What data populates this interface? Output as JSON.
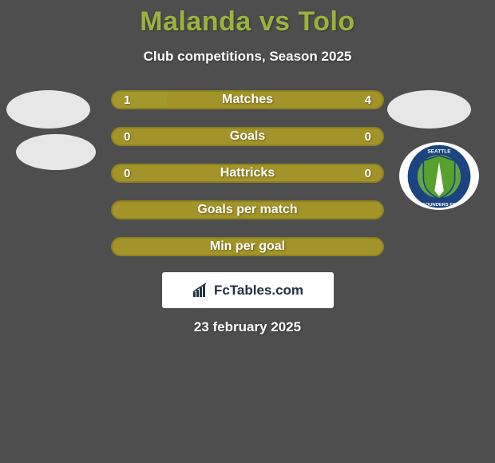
{
  "colors": {
    "background": "#4e4e4e",
    "title": "#9bb23d",
    "text": "#ffffff",
    "bar_bg": "#a29429",
    "bar_border": "#8e821f",
    "bar_left_fill": "#a3982b",
    "bar_label": "#ffffff",
    "bar_value": "#ffffff",
    "logo_left": "#e7e7e7",
    "logo_right_1": "#e7e7e7",
    "logo_right_2_bg": "#ffffff",
    "brand_bg": "#ffffff",
    "brand_text": "#223142",
    "brand_chart": "#223142"
  },
  "title": "Malanda vs Tolo",
  "subtitle": "Club competitions, Season 2025",
  "bars": [
    {
      "label": "Matches",
      "left_val": "1",
      "right_val": "4",
      "left_pct": 20,
      "right_pct": 80,
      "show_vals": true
    },
    {
      "label": "Goals",
      "left_val": "0",
      "right_val": "0",
      "left_pct": 0,
      "right_pct": 0,
      "show_vals": true
    },
    {
      "label": "Hattricks",
      "left_val": "0",
      "right_val": "0",
      "left_pct": 0,
      "right_pct": 0,
      "show_vals": true
    },
    {
      "label": "Goals per match",
      "left_val": "",
      "right_val": "",
      "left_pct": 0,
      "right_pct": 0,
      "show_vals": false
    },
    {
      "label": "Min per goal",
      "left_val": "",
      "right_val": "",
      "left_pct": 0,
      "right_pct": 0,
      "show_vals": false
    }
  ],
  "brand": "FcTables.com",
  "date": "23 february 2025",
  "sounders": {
    "outer_ring": "#1b4481",
    "inner": "#64a443",
    "ring_text": "#ffffff",
    "shield_stroke": "#1b4481",
    "shield_fill": "#58a12f",
    "needle": "#ffffff"
  }
}
